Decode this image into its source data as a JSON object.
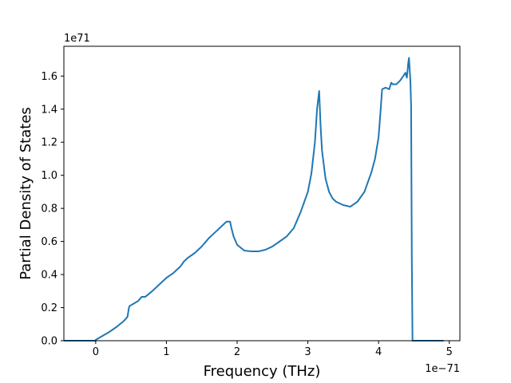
{
  "chart_data": {
    "type": "line",
    "xlabel": "Frequency (THz)",
    "ylabel": "Partial Density of States",
    "x_offset_label": "1e−71",
    "y_offset_label": "1e71",
    "xlim": [
      -0.45,
      5.15
    ],
    "ylim": [
      0,
      1.78
    ],
    "x_ticks": [
      0,
      1,
      2,
      3,
      4,
      5
    ],
    "x_tick_labels": [
      "0",
      "1",
      "2",
      "3",
      "4",
      "5"
    ],
    "y_ticks": [
      0.0,
      0.2,
      0.4,
      0.6,
      0.8,
      1.0,
      1.2,
      1.4,
      1.6
    ],
    "y_tick_labels": [
      "0.0",
      "0.2",
      "0.4",
      "0.6",
      "0.8",
      "1.0",
      "1.2",
      "1.4",
      "1.6"
    ],
    "grid": false,
    "line_color": "#1f77b4",
    "series": [
      {
        "x": [
          -0.45,
          -0.01,
          0.0,
          0.1,
          0.2,
          0.3,
          0.4,
          0.45,
          0.47,
          0.48,
          0.5,
          0.6,
          0.65,
          0.7,
          0.8,
          0.9,
          1.0,
          1.1,
          1.2,
          1.25,
          1.3,
          1.4,
          1.5,
          1.6,
          1.65,
          1.7,
          1.8,
          1.85,
          1.9,
          1.92,
          1.95,
          2.0,
          2.1,
          2.2,
          2.3,
          2.4,
          2.5,
          2.6,
          2.7,
          2.8,
          2.9,
          3.0,
          3.05,
          3.1,
          3.13,
          3.16,
          3.18,
          3.2,
          3.25,
          3.3,
          3.35,
          3.4,
          3.5,
          3.6,
          3.7,
          3.8,
          3.9,
          3.95,
          4.0,
          4.03,
          4.05,
          4.1,
          4.15,
          4.18,
          4.2,
          4.25,
          4.3,
          4.35,
          4.38,
          4.4,
          4.42,
          4.43,
          4.45,
          4.46,
          4.47,
          4.48,
          4.5,
          4.92
        ],
        "y": [
          0,
          0,
          0.005,
          0.03,
          0.055,
          0.085,
          0.12,
          0.145,
          0.2,
          0.21,
          0.215,
          0.24,
          0.265,
          0.265,
          0.3,
          0.34,
          0.38,
          0.41,
          0.45,
          0.48,
          0.5,
          0.53,
          0.57,
          0.62,
          0.64,
          0.66,
          0.7,
          0.72,
          0.72,
          0.68,
          0.63,
          0.58,
          0.545,
          0.54,
          0.54,
          0.55,
          0.57,
          0.6,
          0.63,
          0.68,
          0.78,
          0.9,
          1.01,
          1.2,
          1.4,
          1.51,
          1.3,
          1.15,
          0.98,
          0.9,
          0.86,
          0.84,
          0.82,
          0.81,
          0.84,
          0.9,
          1.02,
          1.1,
          1.23,
          1.4,
          1.52,
          1.53,
          1.52,
          1.56,
          1.55,
          1.55,
          1.57,
          1.6,
          1.62,
          1.59,
          1.68,
          1.71,
          1.57,
          1.42,
          0.5,
          0,
          0,
          0
        ]
      }
    ]
  }
}
